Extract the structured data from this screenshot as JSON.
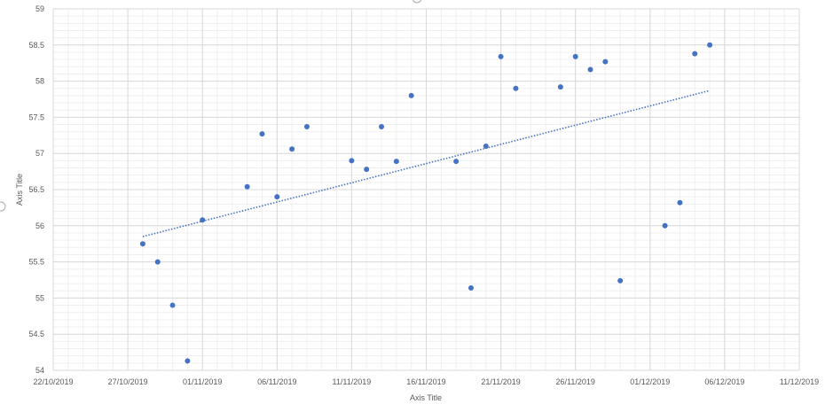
{
  "chart_data": {
    "type": "scatter",
    "title": "",
    "xlabel": "Axis Title",
    "ylabel": "Axis Title",
    "x_type": "date",
    "xlim": [
      "2019-10-22",
      "2019-12-11"
    ],
    "ylim": [
      54,
      59
    ],
    "x_ticks": [
      "2019-10-22",
      "2019-10-27",
      "2019-11-01",
      "2019-11-06",
      "2019-11-11",
      "2019-11-16",
      "2019-11-21",
      "2019-11-26",
      "2019-12-01",
      "2019-12-06",
      "2019-12-11"
    ],
    "x_tick_labels": [
      "22/10/2019",
      "27/10/2019",
      "01/11/2019",
      "06/11/2019",
      "11/11/2019",
      "16/11/2019",
      "21/11/2019",
      "26/11/2019",
      "01/12/2019",
      "06/12/2019",
      "11/12/2019"
    ],
    "y_ticks": [
      54,
      54.5,
      55,
      55.5,
      56,
      56.5,
      57,
      57.5,
      58,
      58.5,
      59
    ],
    "y_tick_labels": [
      "54",
      "54.5",
      "55",
      "55.5",
      "56",
      "56.5",
      "57",
      "57.5",
      "58",
      "58.5",
      "59"
    ],
    "grid": true,
    "minor_grid": true,
    "legend": "none",
    "series": [
      {
        "color": "#4472C4",
        "points": [
          {
            "x": "2019-10-28",
            "y": 55.75
          },
          {
            "x": "2019-10-29",
            "y": 55.5
          },
          {
            "x": "2019-10-30",
            "y": 54.9
          },
          {
            "x": "2019-10-31",
            "y": 54.13
          },
          {
            "x": "2019-11-01",
            "y": 56.08
          },
          {
            "x": "2019-11-04",
            "y": 56.54
          },
          {
            "x": "2019-11-05",
            "y": 57.27
          },
          {
            "x": "2019-11-06",
            "y": 56.4
          },
          {
            "x": "2019-11-07",
            "y": 57.06
          },
          {
            "x": "2019-11-08",
            "y": 57.37
          },
          {
            "x": "2019-11-11",
            "y": 56.9
          },
          {
            "x": "2019-11-12",
            "y": 56.78
          },
          {
            "x": "2019-11-13",
            "y": 57.37
          },
          {
            "x": "2019-11-14",
            "y": 56.89
          },
          {
            "x": "2019-11-15",
            "y": 57.8
          },
          {
            "x": "2019-11-18",
            "y": 56.89
          },
          {
            "x": "2019-11-19",
            "y": 55.14
          },
          {
            "x": "2019-11-20",
            "y": 57.1
          },
          {
            "x": "2019-11-21",
            "y": 58.34
          },
          {
            "x": "2019-11-22",
            "y": 57.9
          },
          {
            "x": "2019-11-25",
            "y": 57.92
          },
          {
            "x": "2019-11-26",
            "y": 58.34
          },
          {
            "x": "2019-11-27",
            "y": 58.16
          },
          {
            "x": "2019-11-28",
            "y": 58.27
          },
          {
            "x": "2019-11-29",
            "y": 55.24
          },
          {
            "x": "2019-12-02",
            "y": 56.0
          },
          {
            "x": "2019-12-03",
            "y": 56.32
          },
          {
            "x": "2019-12-04",
            "y": 58.38
          },
          {
            "x": "2019-12-05",
            "y": 58.5
          }
        ]
      }
    ],
    "trendline": {
      "type": "linear",
      "style": "dotted",
      "color": "#4472C4",
      "start": {
        "x": "2019-10-28",
        "y": 55.85
      },
      "end": {
        "x": "2019-12-05",
        "y": 57.87
      }
    }
  }
}
